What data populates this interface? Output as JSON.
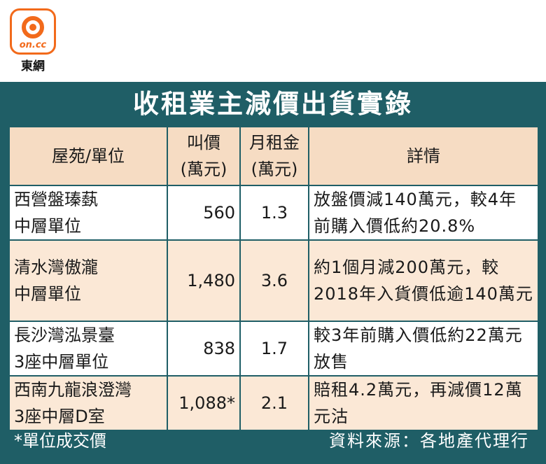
{
  "logo": {
    "mark_text": "on.cc",
    "caption": "東網"
  },
  "title": "收租業主減價出貨實錄",
  "table": {
    "headers": {
      "property": "屋苑/單位",
      "price_line1": "叫價",
      "price_line2": "(萬元)",
      "rent_line1": "月租金",
      "rent_line2": "(萬元)",
      "detail": "詳情"
    },
    "rows": [
      {
        "property_line1": "西營盤瑧蓺",
        "property_line2": "中層單位",
        "price": "560",
        "rent": "1.3",
        "detail": "放盤價減140萬元，較4年前購入價低約20.8%"
      },
      {
        "property_line1": "清水灣傲瀧",
        "property_line2": "中層單位",
        "price": "1,480",
        "rent": "3.6",
        "detail": "約1個月減200萬元，較2018年入貨價低逾140萬元"
      },
      {
        "property_line1": "長沙灣泓景臺",
        "property_line2": "3座中層單位",
        "price": "838",
        "rent": "1.7",
        "detail": "較3年前購入價低約22萬元放售"
      },
      {
        "property_line1": "西南九龍浪澄灣",
        "property_line2": "3座中層D室",
        "price": "1,088*",
        "rent": "2.1",
        "detail": "賠租4.2萬元，再減價12萬元沽"
      }
    ]
  },
  "footer": {
    "note": "*單位成交價",
    "source": "資料來源：各地產代理行"
  },
  "colors": {
    "panel": "#1f5e66",
    "header_cell": "#f6dcc3",
    "alt_row": "#fbe8d6",
    "logo_orange": "#f26a1b"
  }
}
